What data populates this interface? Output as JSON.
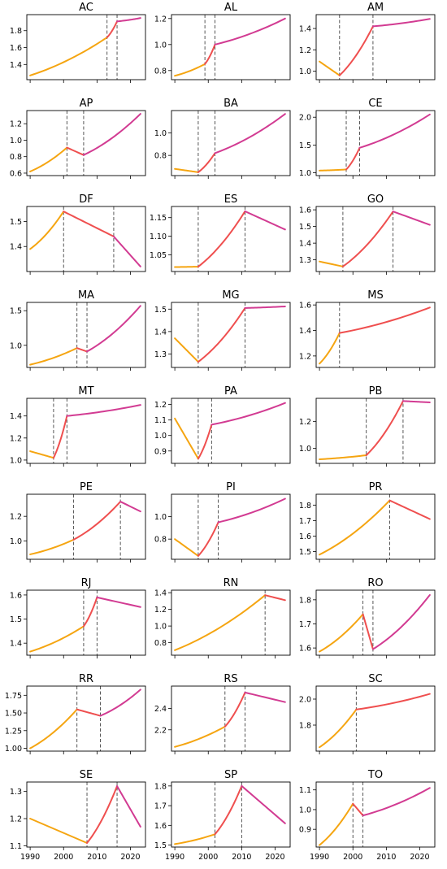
{
  "colors": {
    "segment1": "#f5a511",
    "segment2": "#ef4f4f",
    "segment3": "#d23b92",
    "breakline": "#444444"
  },
  "chart_data": [
    {
      "type": "line",
      "title": "AC",
      "ylim": [
        1.22,
        1.99
      ],
      "yticks": [
        1.4,
        1.6,
        1.8
      ],
      "tick_labels": [
        "1.4",
        "1.6",
        "1.8"
      ],
      "x": [
        1990,
        2013,
        2016,
        2023
      ],
      "values": [
        1.27,
        1.72,
        1.91,
        1.95
      ],
      "breaks": [
        2013,
        2016
      ]
    },
    {
      "type": "line",
      "title": "AL",
      "ylim": [
        0.73,
        1.23
      ],
      "yticks": [
        0.8,
        1.0,
        1.2
      ],
      "tick_labels": [
        "0.8",
        "1.0",
        "1.2"
      ],
      "x": [
        1990,
        1999,
        2002,
        2023
      ],
      "values": [
        0.76,
        0.85,
        1.0,
        1.2
      ],
      "breaks": [
        1999,
        2002
      ]
    },
    {
      "type": "line",
      "title": "AM",
      "ylim": [
        0.92,
        1.53
      ],
      "yticks": [
        1.0,
        1.2,
        1.4
      ],
      "tick_labels": [
        "1.0",
        "1.2",
        "1.4"
      ],
      "x": [
        1990,
        1996,
        2006,
        2023
      ],
      "values": [
        1.09,
        0.96,
        1.42,
        1.49
      ],
      "breaks": [
        1996,
        2006
      ]
    },
    {
      "type": "line",
      "title": "AP",
      "ylim": [
        0.57,
        1.36
      ],
      "yticks": [
        0.6,
        0.8,
        1.0,
        1.2
      ],
      "tick_labels": [
        "0.6",
        "0.8",
        "1.0",
        "1.2"
      ],
      "x": [
        1990,
        2001,
        2006,
        2023
      ],
      "values": [
        0.62,
        0.91,
        0.82,
        1.32
      ],
      "breaks": [
        2001,
        2006
      ]
    },
    {
      "type": "line",
      "title": "BA",
      "ylim": [
        0.62,
        1.2
      ],
      "yticks": [
        0.8,
        1.0
      ],
      "tick_labels": [
        "0.8",
        "1.0"
      ],
      "x": [
        1990,
        1997,
        2002,
        2023
      ],
      "values": [
        0.68,
        0.65,
        0.82,
        1.17
      ],
      "breaks": [
        1997,
        2002
      ]
    },
    {
      "type": "line",
      "title": "CE",
      "ylim": [
        0.95,
        2.12
      ],
      "yticks": [
        1.0,
        1.5,
        2.0
      ],
      "tick_labels": [
        "1.0",
        "1.5",
        "2.0"
      ],
      "x": [
        1990,
        1998,
        2002,
        2023
      ],
      "values": [
        1.04,
        1.06,
        1.45,
        2.05
      ],
      "breaks": [
        1998,
        2002
      ]
    },
    {
      "type": "line",
      "title": "DF",
      "ylim": [
        1.3,
        1.56
      ],
      "yticks": [
        1.4,
        1.5
      ],
      "tick_labels": [
        "1.4",
        "1.5"
      ],
      "x": [
        1990,
        2000,
        2015,
        2023
      ],
      "values": [
        1.39,
        1.54,
        1.44,
        1.32
      ],
      "breaks": [
        2000,
        2015
      ]
    },
    {
      "type": "line",
      "title": "ES",
      "ylim": [
        1.005,
        1.18
      ],
      "yticks": [
        1.05,
        1.1,
        1.15
      ],
      "tick_labels": [
        "1.05",
        "1.10",
        "1.15"
      ],
      "x": [
        1990,
        1997,
        2011,
        2023
      ],
      "values": [
        1.017,
        1.018,
        1.167,
        1.118
      ],
      "breaks": [
        1997,
        2011
      ]
    },
    {
      "type": "line",
      "title": "GO",
      "ylim": [
        1.23,
        1.62
      ],
      "yticks": [
        1.3,
        1.4,
        1.5,
        1.6
      ],
      "tick_labels": [
        "1.3",
        "1.4",
        "1.5",
        "1.6"
      ],
      "x": [
        1990,
        1997,
        2012,
        2023
      ],
      "values": [
        1.29,
        1.26,
        1.59,
        1.51
      ],
      "breaks": [
        1997,
        2012
      ]
    },
    {
      "type": "line",
      "title": "MA",
      "ylim": [
        0.68,
        1.62
      ],
      "yticks": [
        1.0,
        1.5
      ],
      "tick_labels": [
        "1.0",
        "1.5"
      ],
      "x": [
        1990,
        2004,
        2007,
        2023
      ],
      "values": [
        0.72,
        0.96,
        0.91,
        1.57
      ],
      "breaks": [
        2004,
        2007
      ]
    },
    {
      "type": "line",
      "title": "MG",
      "ylim": [
        1.24,
        1.53
      ],
      "yticks": [
        1.3,
        1.4,
        1.5
      ],
      "tick_labels": [
        "1.3",
        "1.4",
        "1.5"
      ],
      "x": [
        1990,
        1997,
        2011,
        2023
      ],
      "values": [
        1.37,
        1.265,
        1.505,
        1.512
      ],
      "breaks": [
        1997,
        2011
      ]
    },
    {
      "type": "line",
      "title": "MS",
      "ylim": [
        1.11,
        1.62
      ],
      "yticks": [
        1.2,
        1.4,
        1.6
      ],
      "tick_labels": [
        "1.2",
        "1.4",
        "1.6"
      ],
      "x": [
        1990,
        1996,
        2023
      ],
      "values": [
        1.14,
        1.38,
        1.58
      ],
      "breaks": [
        1996
      ]
    },
    {
      "type": "line",
      "title": "MT",
      "ylim": [
        0.97,
        1.56
      ],
      "yticks": [
        1.0,
        1.2,
        1.4
      ],
      "tick_labels": [
        "1.0",
        "1.2",
        "1.4"
      ],
      "x": [
        1990,
        1997,
        2001,
        2023
      ],
      "values": [
        1.08,
        1.02,
        1.4,
        1.5
      ],
      "breaks": [
        1997,
        2001
      ]
    },
    {
      "type": "line",
      "title": "PA",
      "ylim": [
        0.82,
        1.24
      ],
      "yticks": [
        0.9,
        1.0,
        1.1,
        1.2
      ],
      "tick_labels": [
        "0.9",
        "1.0",
        "1.1",
        "1.2"
      ],
      "x": [
        1990,
        1997,
        2001,
        2023
      ],
      "values": [
        1.11,
        0.85,
        1.07,
        1.21
      ],
      "breaks": [
        1997,
        2001
      ]
    },
    {
      "type": "line",
      "title": "PB",
      "ylim": [
        0.89,
        1.37
      ],
      "yticks": [
        1.0,
        1.2
      ],
      "tick_labels": [
        "1.0",
        "1.2"
      ],
      "x": [
        1990,
        2004,
        2015,
        2023
      ],
      "values": [
        0.92,
        0.95,
        1.35,
        1.34
      ],
      "breaks": [
        2004,
        2015
      ]
    },
    {
      "type": "line",
      "title": "PE",
      "ylim": [
        0.85,
        1.38
      ],
      "yticks": [
        1.0,
        1.2
      ],
      "tick_labels": [
        "1.0",
        "1.2"
      ],
      "x": [
        1990,
        2003,
        2017,
        2023
      ],
      "values": [
        0.89,
        1.01,
        1.32,
        1.24
      ],
      "breaks": [
        2003,
        2017
      ]
    },
    {
      "type": "line",
      "title": "PI",
      "ylim": [
        0.62,
        1.2
      ],
      "yticks": [
        0.8,
        1.0
      ],
      "tick_labels": [
        "0.8",
        "1.0"
      ],
      "x": [
        1990,
        1997,
        2003,
        2023
      ],
      "values": [
        0.8,
        0.65,
        0.95,
        1.16
      ],
      "breaks": [
        1997,
        2003
      ]
    },
    {
      "type": "line",
      "title": "PR",
      "ylim": [
        1.45,
        1.87
      ],
      "yticks": [
        1.5,
        1.6,
        1.7,
        1.8
      ],
      "tick_labels": [
        "1.5",
        "1.6",
        "1.7",
        "1.8"
      ],
      "x": [
        1990,
        2011,
        2023
      ],
      "values": [
        1.48,
        1.83,
        1.71
      ],
      "breaks": [
        2011
      ]
    },
    {
      "type": "line",
      "title": "RJ",
      "ylim": [
        1.35,
        1.62
      ],
      "yticks": [
        1.4,
        1.5,
        1.6
      ],
      "tick_labels": [
        "1.4",
        "1.5",
        "1.6"
      ],
      "x": [
        1990,
        2006,
        2010,
        2023
      ],
      "values": [
        1.365,
        1.47,
        1.59,
        1.55
      ],
      "breaks": [
        2006,
        2010
      ]
    },
    {
      "type": "line",
      "title": "RN",
      "ylim": [
        0.65,
        1.43
      ],
      "yticks": [
        0.8,
        1.0,
        1.2,
        1.4
      ],
      "tick_labels": [
        "0.8",
        "1.0",
        "1.2",
        "1.4"
      ],
      "x": [
        1990,
        2017,
        2023
      ],
      "values": [
        0.71,
        1.37,
        1.31
      ],
      "breaks": [
        2017
      ]
    },
    {
      "type": "line",
      "title": "RO",
      "ylim": [
        1.57,
        1.84
      ],
      "yticks": [
        1.6,
        1.7,
        1.8
      ],
      "tick_labels": [
        "1.6",
        "1.7",
        "1.8"
      ],
      "x": [
        1990,
        2003,
        2006,
        2023
      ],
      "values": [
        1.585,
        1.74,
        1.595,
        1.82
      ],
      "breaks": [
        2003,
        2006
      ]
    },
    {
      "type": "line",
      "title": "RR",
      "ylim": [
        0.96,
        1.88
      ],
      "yticks": [
        1.0,
        1.25,
        1.5,
        1.75
      ],
      "tick_labels": [
        "1.00",
        "1.25",
        "1.50",
        "1.75"
      ],
      "x": [
        1990,
        2004,
        2011,
        2023
      ],
      "values": [
        1.0,
        1.55,
        1.46,
        1.83
      ],
      "breaks": [
        2004,
        2011
      ]
    },
    {
      "type": "line",
      "title": "RS",
      "ylim": [
        2.0,
        2.61
      ],
      "yticks": [
        2.2,
        2.4
      ],
      "tick_labels": [
        "2.2",
        "2.4"
      ],
      "x": [
        1990,
        2005,
        2011,
        2023
      ],
      "values": [
        2.04,
        2.23,
        2.55,
        2.46
      ],
      "breaks": [
        2005,
        2011
      ]
    },
    {
      "type": "line",
      "title": "SC",
      "ylim": [
        1.6,
        2.1
      ],
      "yticks": [
        1.8,
        2.0
      ],
      "tick_labels": [
        "1.8",
        "2.0"
      ],
      "x": [
        1990,
        2001,
        2023
      ],
      "values": [
        1.63,
        1.92,
        2.04
      ],
      "breaks": [
        2001
      ]
    },
    {
      "type": "line",
      "title": "SE",
      "ylim": [
        1.095,
        1.335
      ],
      "yticks": [
        1.1,
        1.2,
        1.3
      ],
      "tick_labels": [
        "1.1",
        "1.2",
        "1.3"
      ],
      "x": [
        1990,
        2007,
        2016,
        2023
      ],
      "values": [
        1.2,
        1.11,
        1.32,
        1.17
      ],
      "breaks": [
        2007,
        2016
      ]
    },
    {
      "type": "line",
      "title": "SP",
      "ylim": [
        1.49,
        1.82
      ],
      "yticks": [
        1.5,
        1.6,
        1.7,
        1.8
      ],
      "tick_labels": [
        "1.5",
        "1.6",
        "1.7",
        "1.8"
      ],
      "x": [
        1990,
        2002,
        2010,
        2023
      ],
      "values": [
        1.505,
        1.555,
        1.8,
        1.61
      ],
      "breaks": [
        2002,
        2010
      ]
    },
    {
      "type": "line",
      "title": "TO",
      "ylim": [
        0.81,
        1.14
      ],
      "yticks": [
        0.9,
        1.0,
        1.1
      ],
      "tick_labels": [
        "0.9",
        "1.0",
        "1.1"
      ],
      "x": [
        1990,
        2000,
        2003,
        2023
      ],
      "values": [
        0.82,
        1.03,
        0.97,
        1.11
      ],
      "breaks": [
        2000,
        2003
      ]
    }
  ],
  "x_axis": {
    "xlim": [
      1989,
      2024.5
    ],
    "ticks": [
      1990,
      2000,
      2010,
      2020
    ],
    "tick_labels": [
      "1990",
      "2000",
      "2010",
      "2020"
    ]
  }
}
